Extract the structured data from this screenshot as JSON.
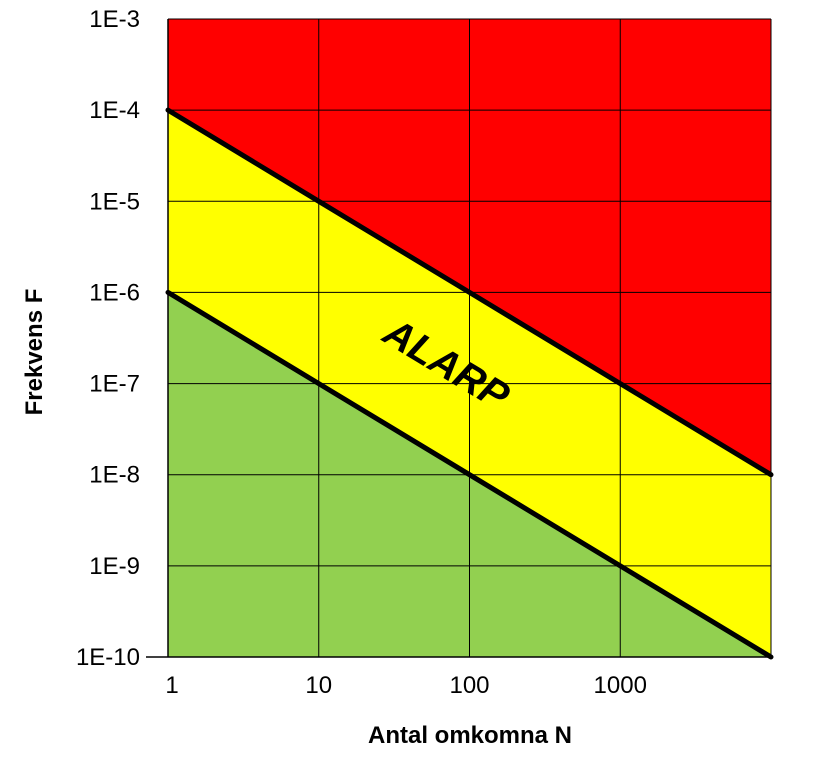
{
  "chart_data": {
    "type": "area",
    "xlabel": "Antal omkomna N",
    "ylabel": "Frekvens F",
    "x_scale": "log",
    "y_scale": "log",
    "xlim": [
      1,
      10000
    ],
    "ylim": [
      1e-10,
      0.001
    ],
    "x_ticks": [
      {
        "value": 1,
        "label": "1"
      },
      {
        "value": 10,
        "label": "10"
      },
      {
        "value": 100,
        "label": "100"
      },
      {
        "value": 1000,
        "label": "1000"
      }
    ],
    "y_ticks": [
      {
        "value": 1e-10,
        "label": "1E-10"
      },
      {
        "value": 1e-09,
        "label": "1E-9"
      },
      {
        "value": 1e-08,
        "label": "1E-8"
      },
      {
        "value": 1e-07,
        "label": "1E-7"
      },
      {
        "value": 1e-06,
        "label": "1E-6"
      },
      {
        "value": 1e-05,
        "label": "1E-5"
      },
      {
        "value": 0.0001,
        "label": "1E-4"
      },
      {
        "value": 0.001,
        "label": "1E-3"
      }
    ],
    "grid": true,
    "series": [
      {
        "line": "upper",
        "color": "#000000",
        "points": [
          [
            1,
            0.0001
          ],
          [
            10,
            1e-05
          ],
          [
            100,
            1e-06
          ],
          [
            1000,
            1e-07
          ],
          [
            10000,
            1e-08
          ]
        ]
      },
      {
        "line": "lower",
        "color": "#000000",
        "points": [
          [
            1,
            1e-06
          ],
          [
            10,
            1e-07
          ],
          [
            100,
            1e-08
          ],
          [
            1000,
            1e-09
          ],
          [
            10000,
            1e-10
          ]
        ]
      }
    ],
    "regions": [
      {
        "position": "above upper line",
        "color": "#ff0000"
      },
      {
        "position": "between lines",
        "color": "#ffff00",
        "label": "ALARP"
      },
      {
        "position": "below lower line",
        "color": "#92d050"
      }
    ]
  }
}
